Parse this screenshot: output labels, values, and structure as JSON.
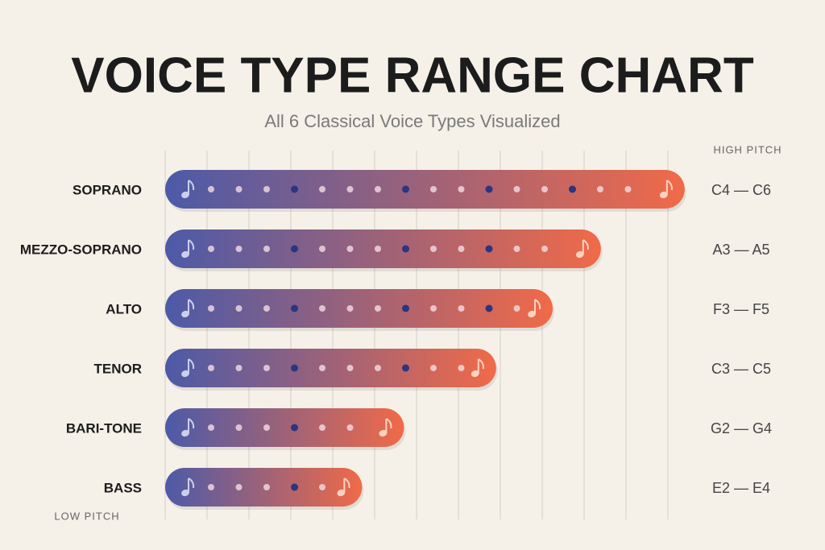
{
  "chart_data": {
    "type": "bar",
    "orientation": "horizontal",
    "title": "VOICE TYPE RANGE CHART",
    "subtitle": "All 6 Classical Voice Types Visualized",
    "top_label": "HIGH PITCH",
    "bottom_label": "LOW PITCH",
    "categories": [
      "SOPRANO",
      "MEZZO-SOPRANO",
      "ALTO",
      "TENOR",
      "BARI-TONE",
      "BASS"
    ],
    "values": [
      12.4,
      10.4,
      9.25,
      7.9,
      5.7,
      4.7
    ],
    "ranges": [
      "C4 — C6",
      "A3 — A5",
      "F3 — F5",
      "C3 — C5",
      "G2 — G4",
      "E2 — E4"
    ],
    "xlim": [
      0,
      12.5
    ],
    "xticks": [
      0,
      1,
      2,
      3,
      4,
      5,
      6,
      7,
      8,
      9,
      10,
      11,
      12
    ],
    "grid": true,
    "colors": [
      "#4c5aa8",
      "#f06a48"
    ]
  }
}
